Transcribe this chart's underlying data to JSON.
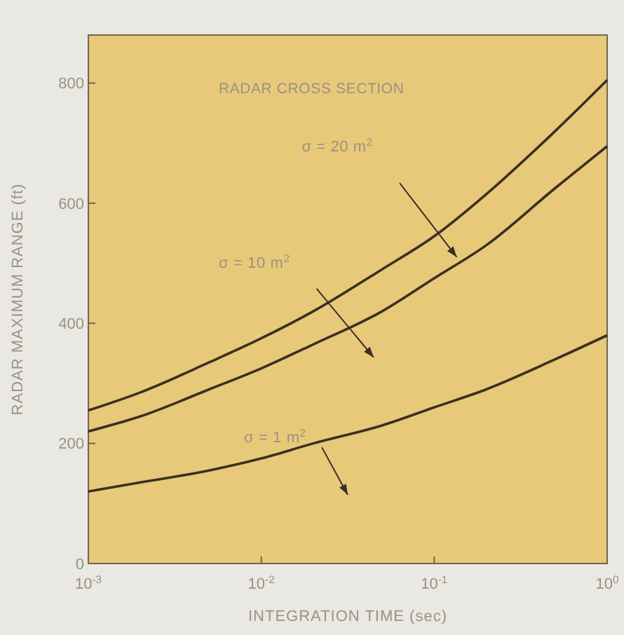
{
  "chart_data": {
    "type": "line",
    "xlabel": "INTEGRATION TIME (sec)",
    "ylabel": "RADAR MAXIMUM RANGE (ft)",
    "log": "x",
    "x": [
      0.001,
      0.002,
      0.005,
      0.01,
      0.02,
      0.05,
      0.1,
      0.2,
      0.5,
      1
    ],
    "series": [
      {
        "color": "#3a3020",
        "values": [
          255,
          285,
          335,
          375,
          420,
          490,
          545,
          615,
          720,
          805
        ]
      },
      {
        "color": "#3a3020",
        "values": [
          220,
          245,
          290,
          325,
          365,
          420,
          475,
          530,
          625,
          695
        ]
      },
      {
        "color": "#3a3020",
        "values": [
          120,
          135,
          155,
          175,
          200,
          230,
          260,
          290,
          340,
          380
        ]
      }
    ],
    "xlim": [
      0.001,
      1
    ],
    "xticks": [
      {
        "value": 0.001,
        "label": "10$^{-3}$"
      },
      {
        "value": 0.01,
        "label": "10$^{-2}$"
      },
      {
        "value": 0.1,
        "label": "10$^{-1}$"
      },
      {
        "value": 1,
        "label": "10$^{0}$"
      }
    ],
    "ylim": [
      0,
      880
    ],
    "yticks": [
      0,
      200,
      400,
      600,
      800
    ],
    "grid": false,
    "marker": "none",
    "line_style": "solid",
    "annotations": [
      "RADAR CROSS SECTION",
      "σ = 20 m$^{2}$",
      "σ = 10 m$^{2}$",
      "σ = 1 m$^{2}$"
    ]
  }
}
